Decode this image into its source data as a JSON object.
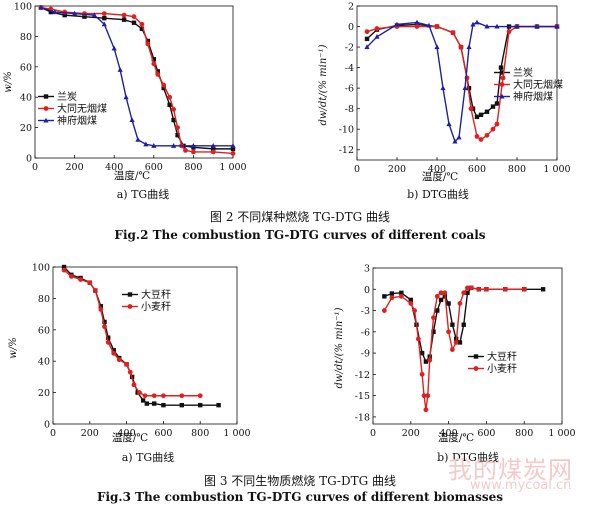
{
  "figures": {
    "fig2": {
      "title_cn": "图 2  不同煤种燃烧 TG-DTG 曲线",
      "title_en": "Fig.2 The combustion TG-DTG curves of different coals"
    },
    "fig3": {
      "title_cn": "图 3  不同生物质燃烧 TG-DTG 曲线",
      "title_en": "Fig.3 The combustion TG-DTG curves of different biomasses"
    }
  },
  "watermark": {
    "cn": "我的煤炭网",
    "url": "www.mycoal.cn"
  },
  "colors": {
    "black": "#111111",
    "red": "#e02020",
    "blue": "#2020a0"
  },
  "chart_data": [
    {
      "id": "fig2a",
      "type": "line",
      "subcaption": "a) TG曲线",
      "xlabel": "温度/℃",
      "ylabel": "w/%",
      "xlim": [
        0,
        1000
      ],
      "ylim": [
        0,
        100
      ],
      "xticks": [
        "0",
        "200",
        "400",
        "600",
        "800",
        "1 000"
      ],
      "yticks": [
        "0",
        "20",
        "40",
        "60",
        "80",
        "100"
      ],
      "legend": "left-middle",
      "series": [
        {
          "name": "兰炭",
          "color": "black",
          "marker": "square",
          "x": [
            30,
            80,
            150,
            250,
            350,
            450,
            500,
            540,
            570,
            600,
            620,
            650,
            680,
            700,
            720,
            750,
            800,
            900,
            1000
          ],
          "y": [
            99,
            96,
            94,
            93,
            92,
            91,
            89,
            85,
            77,
            65,
            57,
            46,
            35,
            25,
            15,
            8,
            7,
            6,
            6
          ]
        },
        {
          "name": "大同无烟煤",
          "color": "red",
          "marker": "circle",
          "x": [
            30,
            80,
            150,
            250,
            350,
            450,
            500,
            540,
            570,
            600,
            620,
            650,
            680,
            700,
            720,
            740,
            760,
            800,
            900,
            1000
          ],
          "y": [
            99,
            98,
            96,
            95,
            95,
            94,
            93,
            88,
            75,
            62,
            55,
            48,
            40,
            32,
            20,
            8,
            5,
            4,
            4,
            3
          ]
        },
        {
          "name": "神府烟煤",
          "color": "blue",
          "marker": "triangle",
          "x": [
            30,
            100,
            200,
            300,
            350,
            400,
            430,
            460,
            490,
            520,
            560,
            600,
            700,
            800,
            900,
            1000
          ],
          "y": [
            99,
            96,
            95,
            94,
            88,
            72,
            58,
            40,
            25,
            12,
            9,
            8,
            8,
            8,
            8,
            8
          ]
        }
      ]
    },
    {
      "id": "fig2b",
      "type": "line",
      "subcaption": "b) DTG曲线",
      "xlabel": "温度/℃",
      "ylabel": "dw/dt/(% min⁻¹)",
      "xlim": [
        0,
        1000
      ],
      "ylim": [
        -13,
        2
      ],
      "xticks": [
        "0",
        "200",
        "400",
        "600",
        "800",
        "1 000"
      ],
      "yticks": [
        "2",
        "0",
        "-2",
        "-4",
        "-6",
        "-8",
        "-10",
        "-12"
      ],
      "legend": "right-middle",
      "series": [
        {
          "name": "兰炭",
          "color": "black",
          "marker": "square",
          "x": [
            50,
            100,
            200,
            300,
            400,
            480,
            520,
            560,
            580,
            600,
            620,
            650,
            680,
            700,
            720,
            760,
            800,
            900,
            1000
          ],
          "y": [
            -1.2,
            -0.3,
            0.1,
            0.2,
            0,
            -0.6,
            -2,
            -6,
            -8,
            -8.8,
            -8.6,
            -8.3,
            -7.8,
            -7.5,
            -4,
            0,
            0,
            0,
            0
          ]
        },
        {
          "name": "大同无烟煤",
          "color": "red",
          "marker": "circle",
          "x": [
            50,
            100,
            200,
            300,
            400,
            480,
            520,
            550,
            570,
            600,
            620,
            650,
            680,
            700,
            730,
            760,
            800,
            900,
            1000
          ],
          "y": [
            -0.5,
            -0.2,
            0,
            0,
            0,
            -0.6,
            -2,
            -5,
            -8,
            -10.7,
            -11,
            -10.6,
            -10,
            -9.5,
            -5,
            -0.5,
            0,
            0,
            0
          ]
        },
        {
          "name": "神府烟煤",
          "color": "blue",
          "marker": "triangle",
          "x": [
            50,
            100,
            200,
            300,
            360,
            400,
            430,
            460,
            490,
            510,
            540,
            560,
            580,
            600,
            650,
            700,
            800,
            900,
            1000
          ],
          "y": [
            -2,
            -1,
            0.2,
            0.4,
            0.1,
            -2,
            -6,
            -9.5,
            -11.2,
            -10.8,
            -6,
            -2,
            0.2,
            0.4,
            0,
            0,
            0,
            0,
            0
          ]
        }
      ]
    },
    {
      "id": "fig3a",
      "type": "line",
      "subcaption": "a) TG曲线",
      "xlabel": "温度/℃",
      "ylabel": "w/%",
      "xlim": [
        0,
        1000
      ],
      "ylim": [
        0,
        100
      ],
      "xticks": [
        "0",
        "200",
        "400",
        "600",
        "800",
        "1 000"
      ],
      "yticks": [
        "0",
        "20",
        "40",
        "60",
        "80",
        "100"
      ],
      "legend": "right-top",
      "series": [
        {
          "name": "大豆秆",
          "color": "black",
          "marker": "square",
          "x": [
            60,
            100,
            150,
            200,
            230,
            260,
            280,
            300,
            330,
            360,
            400,
            430,
            460,
            490,
            510,
            550,
            600,
            700,
            800,
            900
          ],
          "y": [
            100,
            95,
            93,
            90,
            85,
            75,
            65,
            55,
            47,
            42,
            38,
            30,
            20,
            15,
            13,
            13,
            12,
            12,
            12,
            12
          ]
        },
        {
          "name": "小麦秆",
          "color": "red",
          "marker": "circle",
          "x": [
            60,
            100,
            150,
            200,
            230,
            260,
            280,
            300,
            330,
            360,
            400,
            420,
            440,
            470,
            500,
            550,
            600,
            700,
            800
          ],
          "y": [
            98,
            94,
            92,
            90,
            85,
            73,
            62,
            52,
            45,
            41,
            38,
            33,
            25,
            20,
            18,
            18,
            18,
            18,
            18
          ]
        }
      ]
    },
    {
      "id": "fig3b",
      "type": "line",
      "subcaption": "b) DTG曲线",
      "xlabel": "温度/℃",
      "ylabel": "dw/dt/(% min⁻¹)",
      "xlim": [
        0,
        1000
      ],
      "ylim": [
        -19,
        3
      ],
      "xticks": [
        "0",
        "200",
        "400",
        "600",
        "800",
        "1 000"
      ],
      "yticks": [
        "3",
        "0",
        "-3",
        "-6",
        "-9",
        "-12",
        "-15",
        "-18"
      ],
      "legend": "right-middle",
      "series": [
        {
          "name": "大豆秆",
          "color": "black",
          "marker": "square",
          "x": [
            60,
            100,
            150,
            200,
            230,
            260,
            280,
            300,
            320,
            340,
            360,
            380,
            400,
            420,
            440,
            460,
            480,
            500,
            520,
            560,
            600,
            700,
            800,
            900
          ],
          "y": [
            -1,
            -0.6,
            -0.5,
            -1.5,
            -5,
            -9,
            -10.2,
            -9.5,
            -6,
            -3,
            -1.5,
            -1,
            -2,
            -5,
            -7,
            -7.5,
            -5,
            -0.5,
            0.2,
            0,
            0,
            0,
            0,
            0
          ]
        },
        {
          "name": "小麦秆",
          "color": "red",
          "marker": "circle",
          "x": [
            60,
            100,
            150,
            200,
            220,
            240,
            260,
            270,
            280,
            290,
            300,
            320,
            340,
            360,
            380,
            400,
            420,
            440,
            460,
            480,
            500,
            520,
            560,
            600,
            700,
            800
          ],
          "y": [
            -3,
            -1.2,
            -1,
            -2,
            -3,
            -7,
            -12,
            -15,
            -17,
            -15,
            -10,
            -4,
            -1,
            -0.5,
            -0.5,
            -6,
            -8.5,
            -7.5,
            -2,
            -0.5,
            0.2,
            0.2,
            0,
            0,
            0,
            0
          ]
        }
      ]
    }
  ]
}
